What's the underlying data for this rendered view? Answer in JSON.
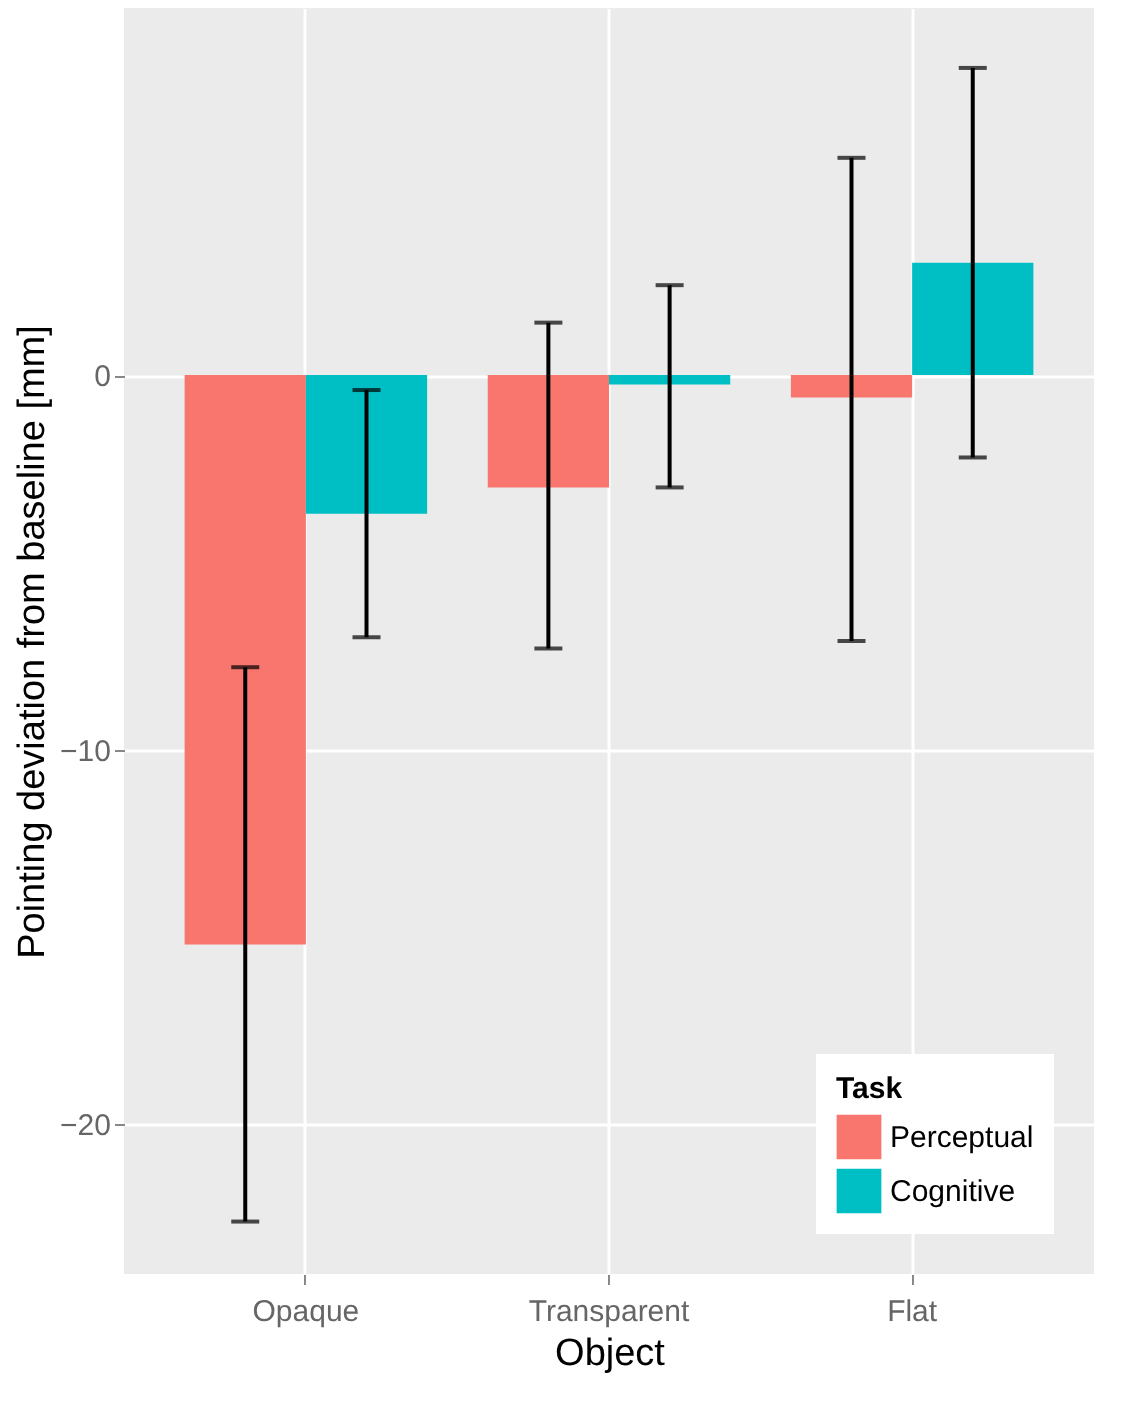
{
  "chart_data": {
    "type": "bar",
    "xlabel": "Object",
    "ylabel": "Pointing deviation from baseline [mm]",
    "legend_title": "Task",
    "categories": [
      "Opaque",
      "Transparent",
      "Flat"
    ],
    "series": [
      {
        "name": "Perceptual",
        "color": "#f8766d",
        "values": [
          -15.2,
          -3.0,
          -0.6
        ],
        "errors": [
          [
            -22.6,
            -7.8
          ],
          [
            -7.3,
            1.4
          ],
          [
            -7.1,
            5.8
          ]
        ]
      },
      {
        "name": "Cognitive",
        "color": "#00bfc4",
        "values": [
          -3.7,
          -0.25,
          3.0
        ],
        "errors": [
          [
            -7.0,
            -0.4
          ],
          [
            -3.0,
            2.4
          ],
          [
            -2.2,
            8.2
          ]
        ]
      }
    ],
    "ylim": [
      -24,
      9.8
    ],
    "yticks": [
      -20,
      -10,
      0
    ],
    "grid": true,
    "legend": "bottom right"
  }
}
